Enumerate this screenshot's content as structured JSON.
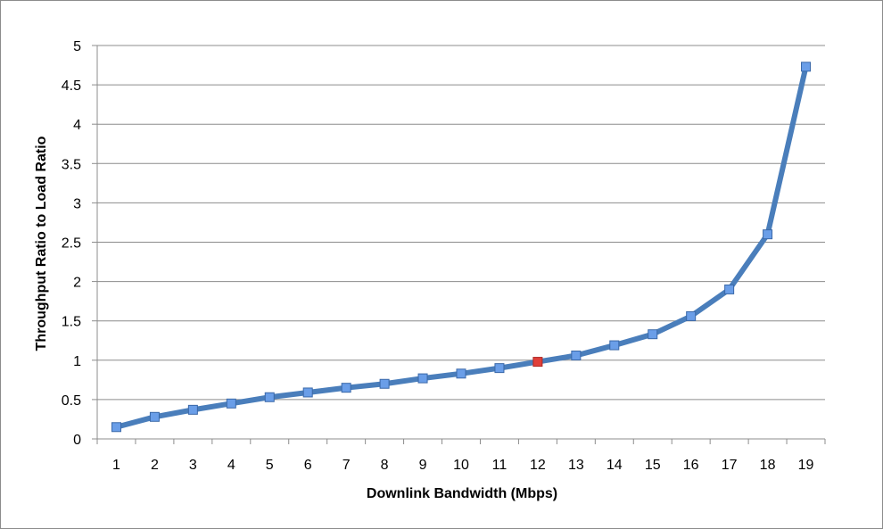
{
  "chart_data": {
    "type": "line",
    "title": "",
    "xlabel": "Downlink Bandwidth (Mbps)",
    "ylabel": "Throughput Ratio to Load Ratio",
    "x": [
      "1",
      "2",
      "3",
      "4",
      "5",
      "6",
      "7",
      "8",
      "9",
      "10",
      "11",
      "12",
      "13",
      "14",
      "15",
      "16",
      "17",
      "18",
      "19"
    ],
    "series": [
      {
        "values": [
          0.15,
          0.28,
          0.37,
          0.45,
          0.53,
          0.59,
          0.65,
          0.7,
          0.77,
          0.83,
          0.9,
          0.98,
          1.06,
          1.19,
          1.33,
          1.56,
          1.9,
          2.6,
          4.73
        ],
        "color": "#4a7ebb",
        "marker_color": "#6a9ee8",
        "highlight_index": 11,
        "highlight_color": "#e0403a"
      }
    ],
    "ylim": [
      0,
      5
    ],
    "yticks": [
      "0",
      "0.5",
      "1",
      "1.5",
      "2",
      "2.5",
      "3",
      "3.5",
      "4",
      "4.5",
      "5"
    ],
    "grid": true,
    "legend": "none"
  }
}
